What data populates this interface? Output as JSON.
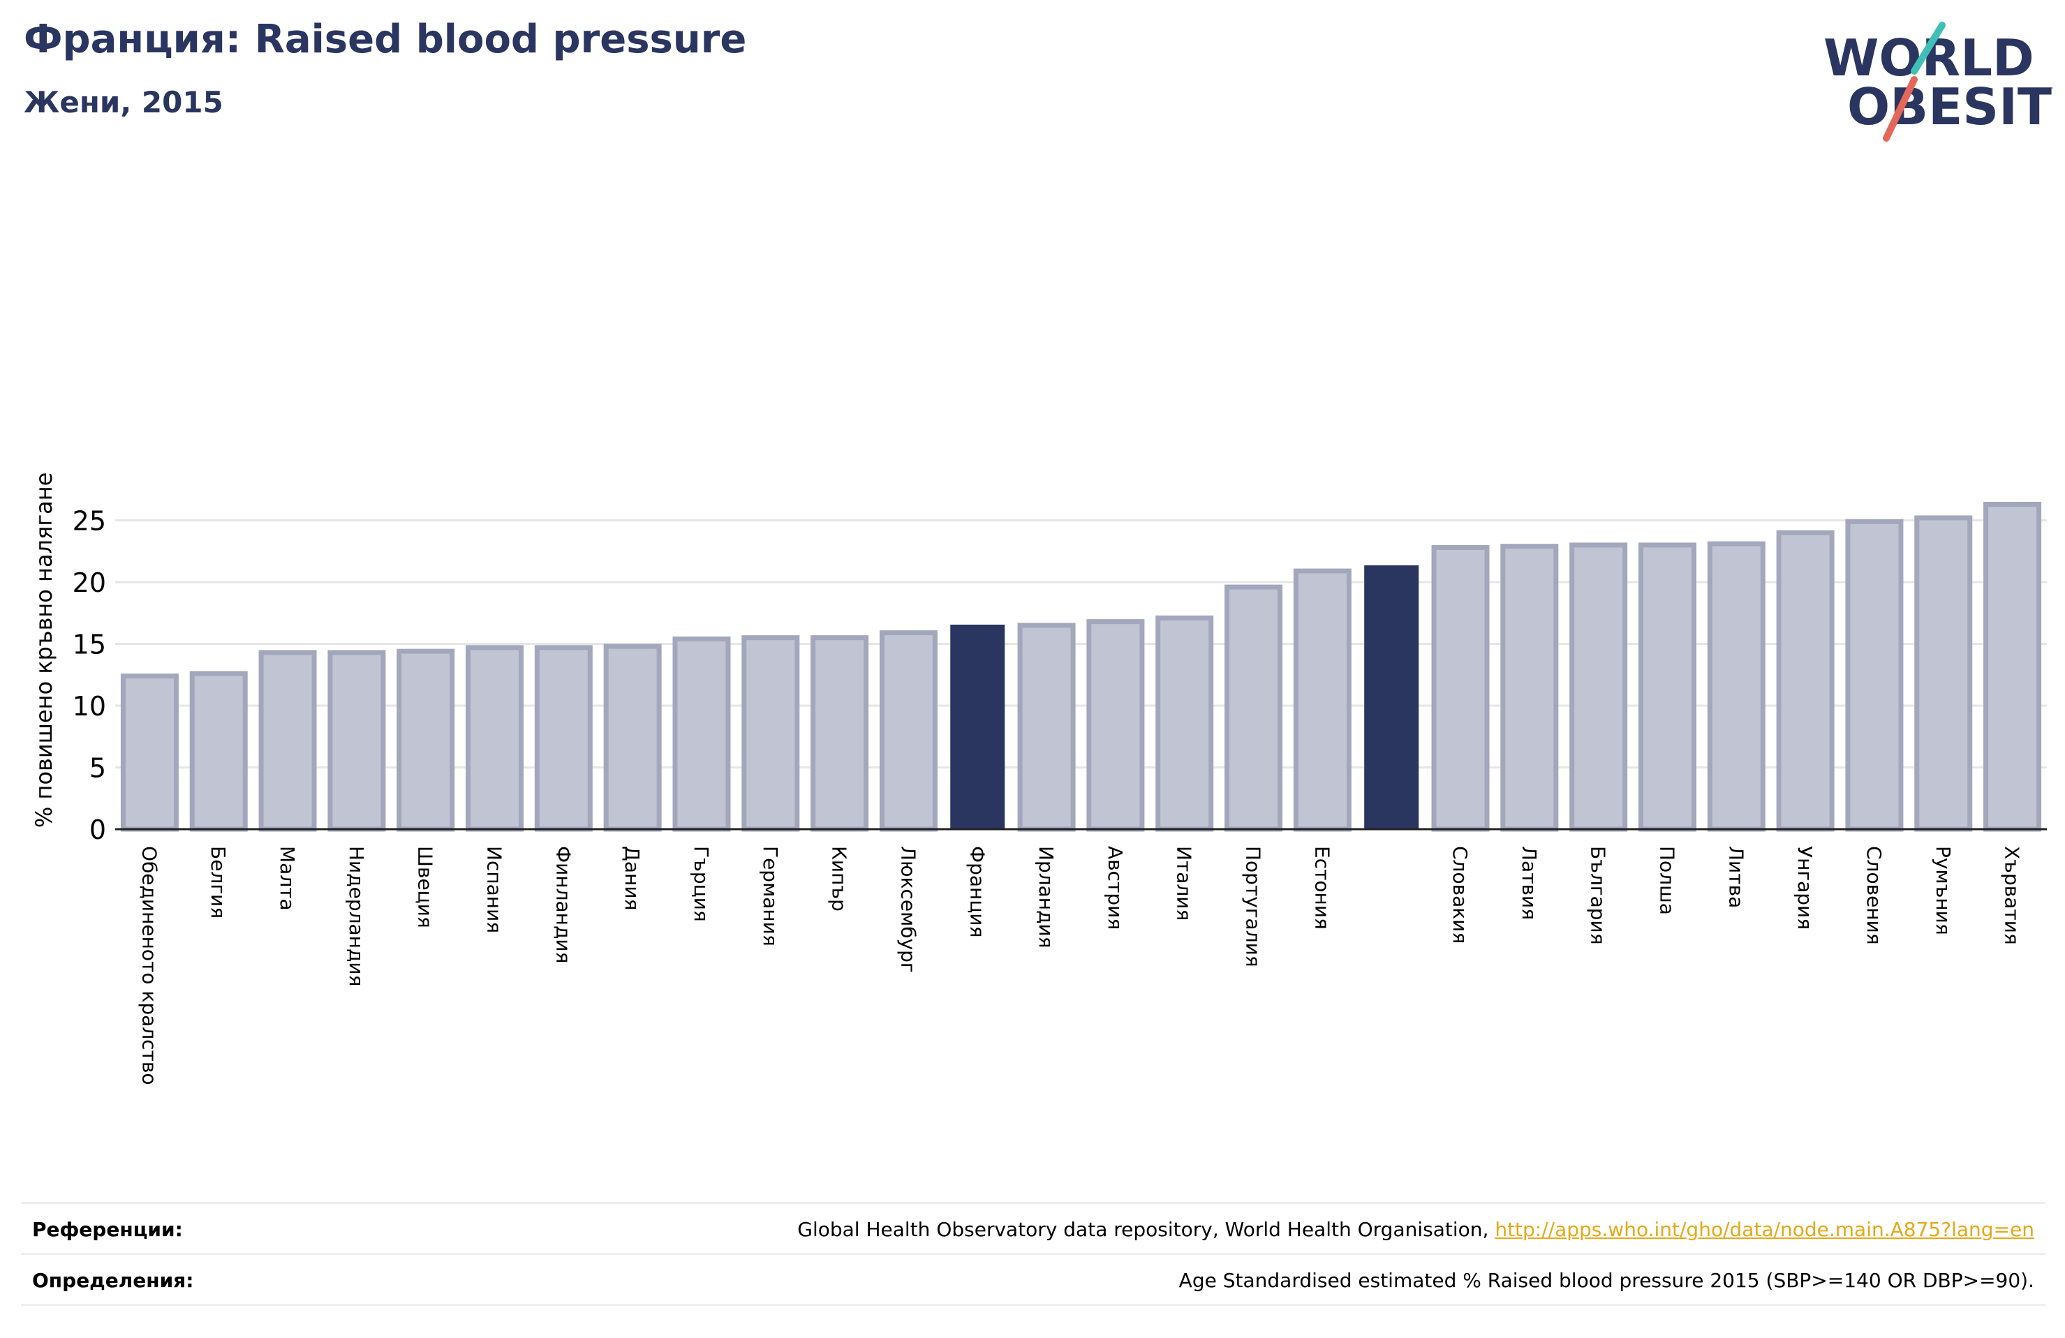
{
  "header": {
    "title": "Франция: Raised blood pressure",
    "subtitle": "Жени, 2015"
  },
  "logo": {
    "line1": "WORLD",
    "line2": "OBESITY",
    "name": "world-obesity-logo"
  },
  "colors": {
    "bar": "#c1c4d2",
    "bar_border": "#a3a7bc",
    "highlight": "#2a3560",
    "grid": "#e6e6e6",
    "link": "#e6a817"
  },
  "chart_data": {
    "type": "bar",
    "title": "Франция: Raised blood pressure",
    "subtitle": "Жени, 2015",
    "ylabel": "% повишено кръвно налягане",
    "xlabel": "",
    "ylim": [
      0,
      27
    ],
    "yticks": [
      0,
      5,
      10,
      15,
      20,
      25
    ],
    "grid": true,
    "categories": [
      "Обединеното кралство",
      "Белгия",
      "Малта",
      "Нидерландия",
      "Швеция",
      "Испания",
      "Финландия",
      "Дания",
      "Гърция",
      "Германия",
      "Кипър",
      "Люксембург",
      "Франция",
      "Ирландия",
      "Австрия",
      "Италия",
      "Португалия",
      "Естония",
      "",
      "Словакия",
      "Латвия",
      "България",
      "Полша",
      "Литва",
      "Унгария",
      "Словения",
      "Румъния",
      "Хърватия"
    ],
    "values": [
      12.4,
      12.6,
      14.3,
      14.3,
      14.4,
      14.7,
      14.7,
      14.8,
      15.4,
      15.5,
      15.5,
      15.9,
      16.5,
      16.5,
      16.8,
      17.1,
      19.6,
      20.9,
      21.3,
      22.8,
      22.9,
      23.0,
      23.0,
      23.1,
      24.0,
      24.9,
      25.2,
      26.3
    ],
    "highlight": [
      12,
      18
    ]
  },
  "references": {
    "ref_label": "Референции:",
    "ref_text": "Global Health Observatory data repository, World Health Organisation, ",
    "ref_link": "http://apps.who.int/gho/data/node.main.A875?lang=en",
    "def_label": "Определения:",
    "def_text": "Age Standardised estimated % Raised blood pressure 2015 (SBP>=140 OR DBP>=90)."
  }
}
